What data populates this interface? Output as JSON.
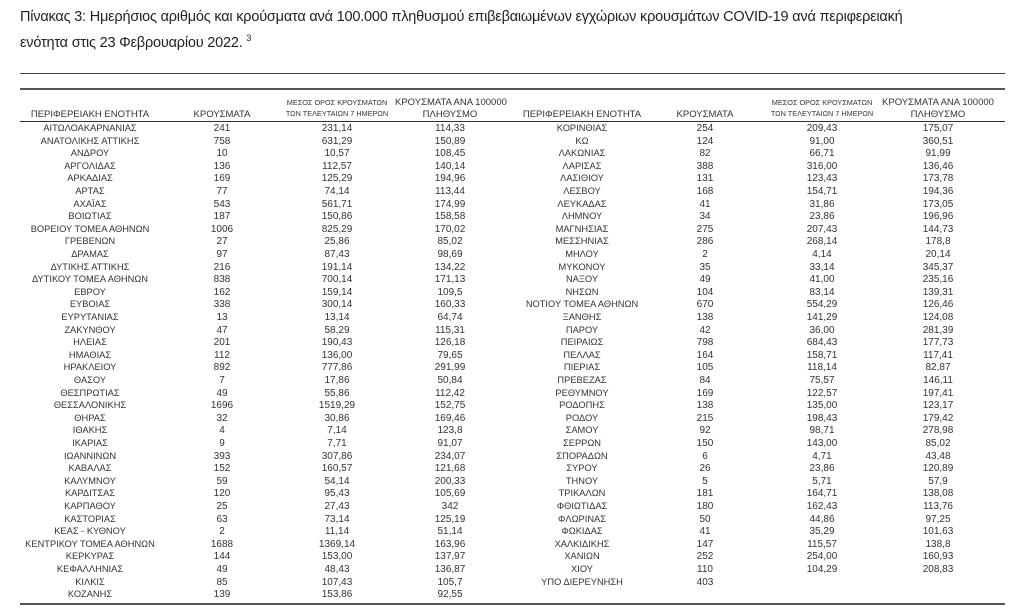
{
  "title": {
    "line1": "Πίνακας 3: Ημερήσιος αριθμός και κρούσματα ανά 100.000 πληθυσμού επιβεβαιωμένων εγχώριων κρουσμάτων COVID-19 ανά περιφερειακή",
    "line2": "ενότητα στις 23 Φεβρουαρίου 2022.",
    "footnote": "3"
  },
  "headers": {
    "region": "ΠΕΡΙΦΕΡΕΙΑΚΗ ΕΝΟΤΗΤΑ",
    "cases": "ΚΡΟΥΣΜΑΤΑ",
    "avg_line1": "ΜΕΣΟΣ ΟΡΟΣ ΚΡΟΥΣΜΑΤΩΝ",
    "avg_line2": "ΤΩΝ ΤΕΛΕΥΤΑΙΩΝ 7 ΗΜΕΡΩΝ",
    "per_line1": "ΚΡΟΥΣΜΑΤΑ ΑΝΑ 100000",
    "per_line2": "ΠΛΗΘΥΣΜΟ"
  },
  "left_rows": [
    [
      "ΑΙΤΩΛΟΑΚΑΡΝΑΝΙΑΣ",
      "241",
      "231,14",
      "114,33"
    ],
    [
      "ΑΝΑΤΟΛΙΚΗΣ ΑΤΤΙΚΗΣ",
      "758",
      "631,29",
      "150,89"
    ],
    [
      "ΑΝΔΡΟΥ",
      "10",
      "10,57",
      "108,45"
    ],
    [
      "ΑΡΓΟΛΙΔΑΣ",
      "136",
      "112,57",
      "140,14"
    ],
    [
      "ΑΡΚΑΔΙΑΣ",
      "169",
      "125,29",
      "194,96"
    ],
    [
      "ΑΡΤΑΣ",
      "77",
      "74,14",
      "113,44"
    ],
    [
      "ΑΧΑΪΑΣ",
      "543",
      "561,71",
      "174,99"
    ],
    [
      "ΒΟΙΩΤΙΑΣ",
      "187",
      "150,86",
      "158,58"
    ],
    [
      "ΒΟΡΕΙΟΥ ΤΟΜΕΑ ΑΘΗΝΩΝ",
      "1006",
      "825,29",
      "170,02"
    ],
    [
      "ΓΡΕΒΕΝΩΝ",
      "27",
      "25,86",
      "85,02"
    ],
    [
      "ΔΡΑΜΑΣ",
      "97",
      "87,43",
      "98,69"
    ],
    [
      "ΔΥΤΙΚΗΣ ΑΤΤΙΚΗΣ",
      "216",
      "191,14",
      "134,22"
    ],
    [
      "ΔΥΤΙΚΟΥ ΤΟΜΕΑ ΑΘΗΝΩΝ",
      "838",
      "700,14",
      "171,13"
    ],
    [
      "ΕΒΡΟΥ",
      "162",
      "159,14",
      "109,5"
    ],
    [
      "ΕΥΒΟΙΑΣ",
      "338",
      "300,14",
      "160,33"
    ],
    [
      "ΕΥΡΥΤΑΝΙΑΣ",
      "13",
      "13,14",
      "64,74"
    ],
    [
      "ΖΑΚΥΝΘΟΥ",
      "47",
      "58,29",
      "115,31"
    ],
    [
      "ΗΛΕΙΑΣ",
      "201",
      "190,43",
      "126,18"
    ],
    [
      "ΗΜΑΘΙΑΣ",
      "112",
      "136,00",
      "79,65"
    ],
    [
      "ΗΡΑΚΛΕΙΟΥ",
      "892",
      "777,86",
      "291,99"
    ],
    [
      "ΘΑΣΟΥ",
      "7",
      "17,86",
      "50,84"
    ],
    [
      "ΘΕΣΠΡΩΤΙΑΣ",
      "49",
      "55,86",
      "112,42"
    ],
    [
      "ΘΕΣΣΑΛΟΝΙΚΗΣ",
      "1696",
      "1519,29",
      "152,75"
    ],
    [
      "ΘΗΡΑΣ",
      "32",
      "30,86",
      "169,46"
    ],
    [
      "ΙΘΑΚΗΣ",
      "4",
      "7,14",
      "123,8"
    ],
    [
      "ΙΚΑΡΙΑΣ",
      "9",
      "7,71",
      "91,07"
    ],
    [
      "ΙΩΑΝΝΙΝΩΝ",
      "393",
      "307,86",
      "234,07"
    ],
    [
      "ΚΑΒΑΛΑΣ",
      "152",
      "160,57",
      "121,68"
    ],
    [
      "ΚΑΛΥΜΝΟΥ",
      "59",
      "54,14",
      "200,33"
    ],
    [
      "ΚΑΡΔΙΤΣΑΣ",
      "120",
      "95,43",
      "105,69"
    ],
    [
      "ΚΑΡΠΑΘΟΥ",
      "25",
      "27,43",
      "342"
    ],
    [
      "ΚΑΣΤΟΡΙΑΣ",
      "63",
      "73,14",
      "125,19"
    ],
    [
      "ΚΕΑΣ - ΚΥΘΝΟΥ",
      "2",
      "11,14",
      "51,14"
    ],
    [
      "ΚΕΝΤΡΙΚΟΥ ΤΟΜΕΑ ΑΘΗΝΩΝ",
      "1688",
      "1369,14",
      "163,96"
    ],
    [
      "ΚΕΡΚΥΡΑΣ",
      "144",
      "153,00",
      "137,97"
    ],
    [
      "ΚΕΦΑΛΛΗΝΙΑΣ",
      "49",
      "48,43",
      "136,87"
    ],
    [
      "ΚΙΛΚΙΣ",
      "85",
      "107,43",
      "105,7"
    ],
    [
      "ΚΟΖΑΝΗΣ",
      "139",
      "153,86",
      "92,55"
    ]
  ],
  "right_rows": [
    [
      "ΚΟΡΙΝΘΙΑΣ",
      "254",
      "209,43",
      "175,07"
    ],
    [
      "ΚΩ",
      "124",
      "91,00",
      "360,51"
    ],
    [
      "ΛΑΚΩΝΙΑΣ",
      "82",
      "66,71",
      "91,99"
    ],
    [
      "ΛΑΡΙΣΑΣ",
      "388",
      "316,00",
      "136,46"
    ],
    [
      "ΛΑΣΙΘΙΟΥ",
      "131",
      "123,43",
      "173,78"
    ],
    [
      "ΛΕΣΒΟΥ",
      "168",
      "154,71",
      "194,36"
    ],
    [
      "ΛΕΥΚΑΔΑΣ",
      "41",
      "31,86",
      "173,05"
    ],
    [
      "ΛΗΜΝΟΥ",
      "34",
      "23,86",
      "196,96"
    ],
    [
      "ΜΑΓΝΗΣΙΑΣ",
      "275",
      "207,43",
      "144,73"
    ],
    [
      "ΜΕΣΣΗΝΙΑΣ",
      "286",
      "268,14",
      "178,8"
    ],
    [
      "ΜΗΛΟΥ",
      "2",
      "4,14",
      "20,14"
    ],
    [
      "ΜΥΚΟΝΟΥ",
      "35",
      "33,14",
      "345,37"
    ],
    [
      "ΝΑΞΟΥ",
      "49",
      "41,00",
      "235,16"
    ],
    [
      "ΝΗΣΩΝ",
      "104",
      "83,14",
      "139,31"
    ],
    [
      "ΝΟΤΙΟΥ ΤΟΜΕΑ ΑΘΗΝΩΝ",
      "670",
      "554,29",
      "126,46"
    ],
    [
      "ΞΑΝΘΗΣ",
      "138",
      "141,29",
      "124,08"
    ],
    [
      "ΠΑΡΟΥ",
      "42",
      "36,00",
      "281,39"
    ],
    [
      "ΠΕΙΡΑΙΩΣ",
      "798",
      "684,43",
      "177,73"
    ],
    [
      "ΠΕΛΛΑΣ",
      "164",
      "158,71",
      "117,41"
    ],
    [
      "ΠΙΕΡΙΑΣ",
      "105",
      "118,14",
      "82,87"
    ],
    [
      "ΠΡΕΒΕΖΑΣ",
      "84",
      "75,57",
      "146,11"
    ],
    [
      "ΡΕΘΥΜΝΟΥ",
      "169",
      "122,57",
      "197,41"
    ],
    [
      "ΡΟΔΟΠΗΣ",
      "138",
      "135,00",
      "123,17"
    ],
    [
      "ΡΟΔΟΥ",
      "215",
      "198,43",
      "179,42"
    ],
    [
      "ΣΑΜΟΥ",
      "92",
      "98,71",
      "278,98"
    ],
    [
      "ΣΕΡΡΩΝ",
      "150",
      "143,00",
      "85,02"
    ],
    [
      "ΣΠΟΡΑΔΩΝ",
      "6",
      "4,71",
      "43,48"
    ],
    [
      "ΣΥΡΟΥ",
      "26",
      "23,86",
      "120,89"
    ],
    [
      "ΤΗΝΟΥ",
      "5",
      "5,71",
      "57,9"
    ],
    [
      "ΤΡΙΚΑΛΩΝ",
      "181",
      "164,71",
      "138,08"
    ],
    [
      "ΦΘΙΩΤΙΔΑΣ",
      "180",
      "162,43",
      "113,76"
    ],
    [
      "ΦΛΩΡΙΝΑΣ",
      "50",
      "44,86",
      "97,25"
    ],
    [
      "ΦΩΚΙΔΑΣ",
      "41",
      "35,29",
      "101,63"
    ],
    [
      "ΧΑΛΚΙΔΙΚΗΣ",
      "147",
      "115,57",
      "138,8"
    ],
    [
      "ΧΑΝΙΩΝ",
      "252",
      "254,00",
      "160,93"
    ],
    [
      "ΧΙΟΥ",
      "110",
      "104,29",
      "208,83"
    ],
    [
      "ΥΠΟ ΔΙΕΡΕΥΝΗΣΗ",
      "403",
      "",
      ""
    ]
  ]
}
